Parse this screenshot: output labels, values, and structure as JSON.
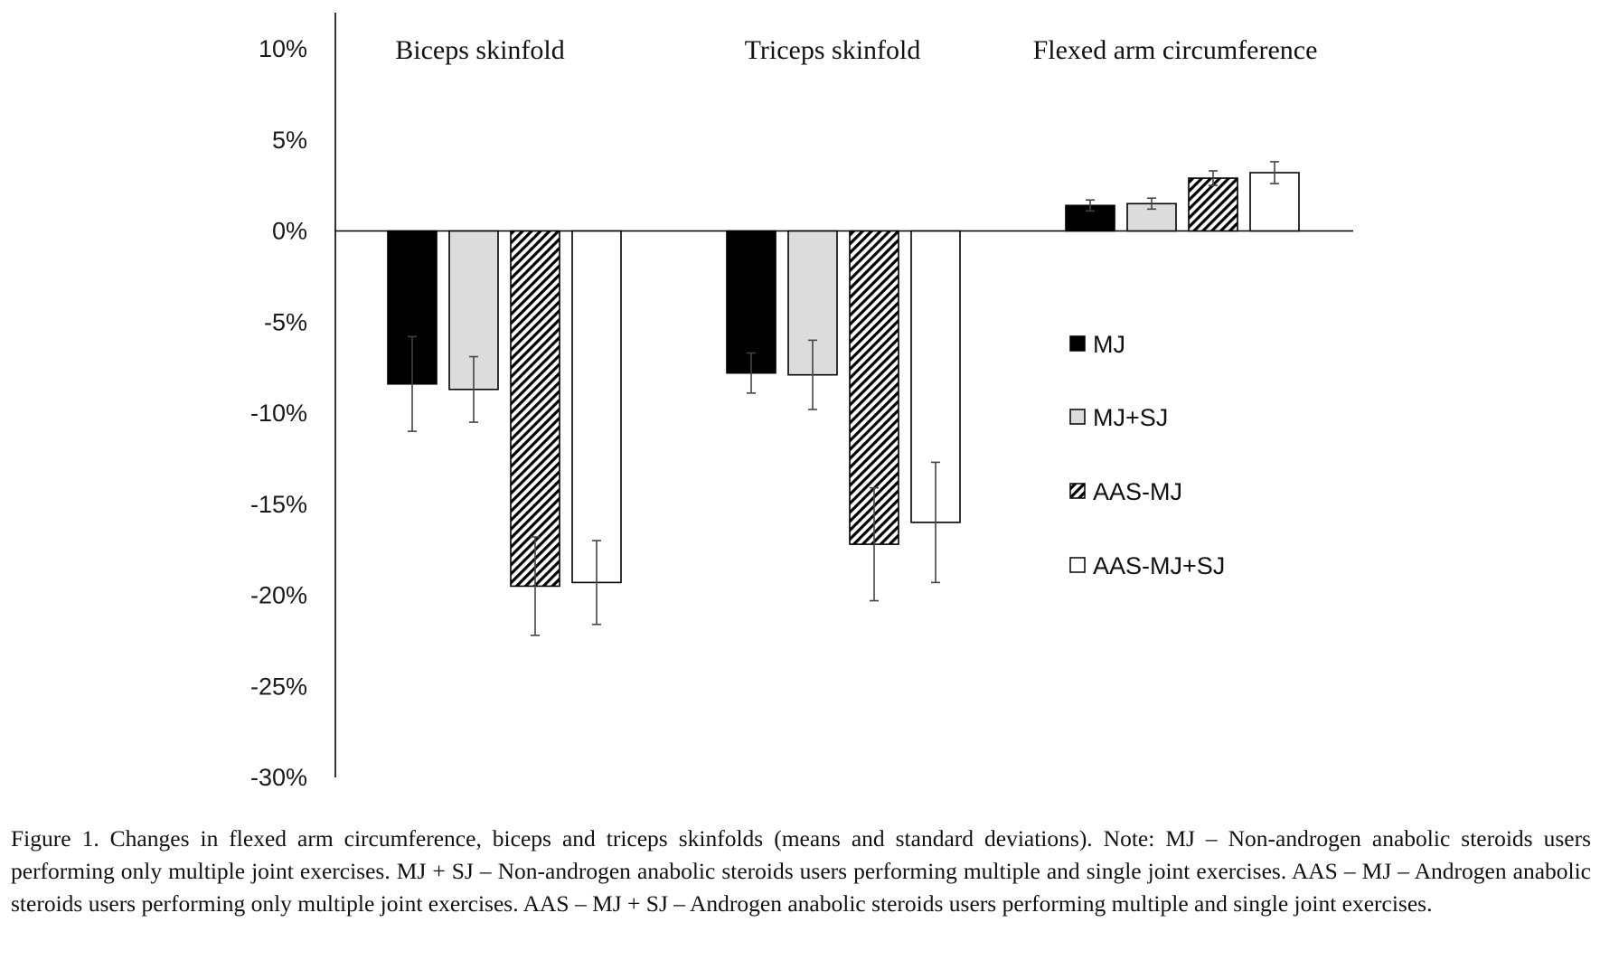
{
  "caption": "Figure 1. Changes in flexed arm circumference, biceps and triceps skinfolds (means and standard deviations). Note: MJ – Non-androgen anabolic steroids users performing only multiple joint exercises. MJ + SJ – Non-androgen anabolic steroids users performing multiple and single joint exercises. AAS – MJ – Androgen anabolic steroids users performing only multiple joint exercises. AAS – MJ + SJ – Androgen anabolic steroids users performing multiple and single joint exercises.",
  "chart_data": {
    "type": "bar",
    "title": "",
    "xlabel": "",
    "ylabel": "",
    "categories": [
      "Biceps skinfold",
      "Triceps skinfold",
      "Flexed arm circumference"
    ],
    "ylim": [
      -30,
      10
    ],
    "yticks": [
      10,
      5,
      0,
      -5,
      -10,
      -15,
      -20,
      -25,
      -30
    ],
    "ytick_labels": [
      "10%",
      "5%",
      "0%",
      "-5%",
      "-10%",
      "-15%",
      "-20%",
      "-25%",
      "-30%"
    ],
    "grid": false,
    "legend_position": "right",
    "series": [
      {
        "name": "MJ",
        "values": [
          -8.4,
          -7.8,
          1.4
        ],
        "errors": [
          2.6,
          1.1,
          0.3
        ],
        "fill": "solid",
        "color": "#000000"
      },
      {
        "name": "MJ+SJ",
        "values": [
          -8.7,
          -7.9,
          1.5
        ],
        "errors": [
          1.8,
          1.9,
          0.3
        ],
        "fill": "solid",
        "color": "#dcdcdc"
      },
      {
        "name": "AAS-MJ",
        "values": [
          -19.5,
          -17.2,
          2.9
        ],
        "errors": [
          2.7,
          3.1,
          0.4
        ],
        "fill": "hatch",
        "color": "#ffffff"
      },
      {
        "name": "AAS-MJ+SJ",
        "values": [
          -19.3,
          -16.0,
          3.2
        ],
        "errors": [
          2.3,
          3.3,
          0.6
        ],
        "fill": "solid",
        "color": "#ffffff"
      }
    ]
  }
}
